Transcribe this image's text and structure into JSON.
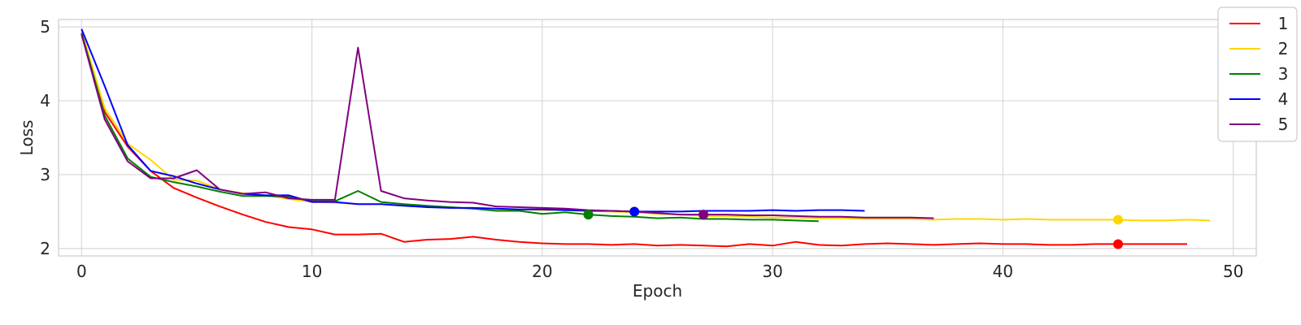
{
  "chart_data": {
    "type": "line",
    "xlabel": "Epoch",
    "ylabel": "Loss",
    "xlim": [
      -1,
      51
    ],
    "ylim": [
      1.9,
      5.1
    ],
    "xticks": [
      0,
      10,
      20,
      30,
      40,
      50
    ],
    "yticks": [
      2,
      3,
      4,
      5
    ],
    "grid": true,
    "legend": "top-right",
    "series": [
      {
        "name": "1",
        "color": "#ff0000",
        "y": [
          4.9,
          3.85,
          3.38,
          3.05,
          2.82,
          2.69,
          2.57,
          2.46,
          2.36,
          2.29,
          2.26,
          2.19,
          2.19,
          2.2,
          2.09,
          2.12,
          2.13,
          2.16,
          2.12,
          2.09,
          2.07,
          2.06,
          2.06,
          2.05,
          2.06,
          2.04,
          2.05,
          2.04,
          2.03,
          2.06,
          2.04,
          2.09,
          2.05,
          2.04,
          2.06,
          2.07,
          2.06,
          2.05,
          2.06,
          2.07,
          2.06,
          2.06,
          2.05,
          2.05,
          2.06,
          2.06,
          2.06,
          2.06,
          2.06
        ],
        "marker": {
          "x": 45,
          "y": 2.06
        }
      },
      {
        "name": "2",
        "color": "#ffd700",
        "y": [
          4.95,
          3.9,
          3.42,
          3.2,
          2.93,
          2.92,
          2.8,
          2.75,
          2.72,
          2.67,
          2.63,
          2.62,
          2.6,
          2.6,
          2.58,
          2.57,
          2.55,
          2.54,
          2.53,
          2.53,
          2.52,
          2.52,
          2.51,
          2.5,
          2.49,
          2.47,
          2.46,
          2.44,
          2.44,
          2.43,
          2.42,
          2.42,
          2.41,
          2.41,
          2.4,
          2.4,
          2.4,
          2.39,
          2.4,
          2.4,
          2.39,
          2.4,
          2.39,
          2.39,
          2.39,
          2.39,
          2.38,
          2.38,
          2.39,
          2.38
        ],
        "marker": {
          "x": 45,
          "y": 2.39
        }
      },
      {
        "name": "3",
        "color": "#008000",
        "y": [
          4.92,
          3.8,
          3.22,
          2.97,
          2.9,
          2.84,
          2.77,
          2.71,
          2.71,
          2.7,
          2.64,
          2.64,
          2.78,
          2.63,
          2.6,
          2.58,
          2.56,
          2.54,
          2.51,
          2.51,
          2.47,
          2.49,
          2.46,
          2.44,
          2.43,
          2.41,
          2.42,
          2.4,
          2.4,
          2.39,
          2.39,
          2.38,
          2.37
        ],
        "marker": {
          "x": 22,
          "y": 2.46
        }
      },
      {
        "name": "4",
        "color": "#0000ff",
        "y": [
          4.97,
          4.2,
          3.4,
          3.05,
          2.98,
          2.88,
          2.8,
          2.74,
          2.72,
          2.72,
          2.63,
          2.63,
          2.6,
          2.6,
          2.58,
          2.56,
          2.55,
          2.55,
          2.54,
          2.53,
          2.53,
          2.52,
          2.51,
          2.51,
          2.5,
          2.5,
          2.5,
          2.51,
          2.51,
          2.51,
          2.52,
          2.51,
          2.52,
          2.52,
          2.51
        ],
        "marker": {
          "x": 24,
          "y": 2.5
        }
      },
      {
        "name": "5",
        "color": "#800080",
        "y": [
          4.9,
          3.75,
          3.18,
          2.95,
          2.95,
          3.06,
          2.8,
          2.74,
          2.76,
          2.68,
          2.66,
          2.66,
          4.72,
          2.78,
          2.68,
          2.65,
          2.63,
          2.62,
          2.57,
          2.56,
          2.55,
          2.54,
          2.52,
          2.51,
          2.5,
          2.48,
          2.46,
          2.46,
          2.46,
          2.45,
          2.45,
          2.44,
          2.43,
          2.43,
          2.42,
          2.42,
          2.42,
          2.41
        ],
        "marker": {
          "x": 27,
          "y": 2.46
        }
      }
    ]
  }
}
